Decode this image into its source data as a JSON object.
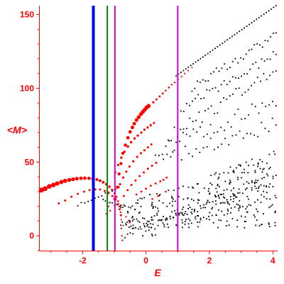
{
  "chart_data": {
    "type": "scatter",
    "title": "",
    "xlabel": "E",
    "ylabel": "<M>",
    "xlim": [
      -3.35,
      4.15
    ],
    "ylim": [
      -10,
      156
    ],
    "x_ticks": [
      -2,
      0,
      2,
      4
    ],
    "x_tick_labels": [
      "-2",
      "0",
      "2",
      "4"
    ],
    "y_ticks": [
      0,
      50,
      100,
      150
    ],
    "y_tick_labels": [
      "0",
      "50",
      "100",
      "150"
    ],
    "grid": false,
    "legend": "none",
    "axis_color": "#ff0000",
    "vertical_lines": [
      {
        "x": -1.66,
        "color": "#0000ff"
      },
      {
        "x": -1.22,
        "color": "#008000"
      },
      {
        "x": -0.98,
        "color": "#dd00dd"
      },
      {
        "x": 1.0,
        "color": "#dd00dd"
      }
    ],
    "series": [
      {
        "color": "#ff0000",
        "points": [
          [
            -3.3,
            31,
            3.5
          ],
          [
            -3.18,
            32,
            3.4
          ],
          [
            -3.05,
            33.5,
            3.3
          ],
          [
            -2.92,
            34.5,
            3.2
          ],
          [
            -2.8,
            35.5,
            3.1
          ],
          [
            -2.67,
            36.5,
            3.0
          ],
          [
            -2.55,
            37.3,
            2.9
          ],
          [
            -2.42,
            37.9,
            2.8
          ],
          [
            -2.3,
            38.4,
            2.7
          ],
          [
            -2.18,
            38.8,
            2.6
          ],
          [
            -2.05,
            39.0,
            2.5
          ],
          [
            -1.93,
            39.1,
            2.4
          ],
          [
            -1.8,
            39.0,
            2.3
          ],
          [
            -1.68,
            38.7,
            2.2
          ],
          [
            -1.55,
            38.2,
            2.1
          ],
          [
            -1.45,
            37.4,
            2.0
          ],
          [
            -1.35,
            36.3,
            1.9
          ],
          [
            -1.25,
            35.0,
            1.8
          ],
          [
            -1.15,
            33.3,
            1.7
          ],
          [
            -1.07,
            31.3,
            1.6
          ],
          [
            -0.99,
            29.0,
            1.5
          ],
          [
            -0.93,
            26.5,
            1.4
          ],
          [
            -0.88,
            23.5,
            1.3
          ],
          [
            -0.83,
            20.0,
            1.2
          ],
          [
            -0.8,
            16.0,
            1.2
          ],
          [
            -0.78,
            11.0,
            1.1
          ],
          [
            -0.76,
            0.0,
            1.1
          ],
          [
            -0.74,
            -3.0,
            1.0
          ],
          [
            -2.75,
            22.0,
            1.5
          ],
          [
            -2.55,
            24.0,
            1.5
          ],
          [
            -2.35,
            26.5,
            1.5
          ],
          [
            -2.15,
            28.5,
            1.5
          ],
          [
            -1.95,
            30.0,
            1.5
          ],
          [
            -1.78,
            31.0,
            1.5
          ],
          [
            -1.6,
            31.5,
            1.5
          ],
          [
            -1.45,
            31.5,
            1.5
          ],
          [
            -1.3,
            30.5,
            1.5
          ],
          [
            -1.18,
            29.0,
            1.5
          ],
          [
            -1.06,
            27.0,
            1.5
          ],
          [
            -0.96,
            24.5,
            1.5
          ],
          [
            -0.88,
            21.5,
            1.5
          ],
          [
            -0.83,
            18.0,
            1.5
          ],
          [
            -0.79,
            14.0,
            1.5
          ],
          [
            -1.25,
            15.0,
            1.2
          ],
          [
            -1.18,
            20.0,
            1.2
          ],
          [
            -1.13,
            17.0,
            1.2
          ],
          [
            -0.72,
            7.0,
            1.1
          ],
          [
            -0.63,
            13.0,
            1.1
          ],
          [
            -0.52,
            9.0,
            1.1
          ],
          [
            -0.98,
            25.0,
            2.3
          ],
          [
            -0.9,
            33.0,
            2.3
          ],
          [
            -0.85,
            42.0,
            2.2
          ],
          [
            -0.79,
            49.0,
            2.2
          ],
          [
            -0.73,
            56.0,
            2.2
          ],
          [
            -0.65,
            61.5,
            2.3
          ],
          [
            -0.57,
            66.5,
            2.4
          ],
          [
            -0.5,
            70.5,
            2.4
          ],
          [
            -0.43,
            73.5,
            2.5
          ],
          [
            -0.37,
            76.0,
            2.5
          ],
          [
            -0.3,
            78.5,
            2.6
          ],
          [
            -0.23,
            80.5,
            2.7
          ],
          [
            -0.16,
            82.5,
            2.7
          ],
          [
            -0.1,
            84.0,
            2.8
          ],
          [
            -0.04,
            85.5,
            2.8
          ],
          [
            0.02,
            87.0,
            2.9
          ],
          [
            0.08,
            88.0,
            2.9
          ],
          [
            0.23,
            90.5,
            1.6
          ],
          [
            0.33,
            92.5,
            1.5
          ],
          [
            0.43,
            94.5,
            1.4
          ],
          [
            0.53,
            96.5,
            1.4
          ],
          [
            0.62,
            98.5,
            1.3
          ],
          [
            0.72,
            100.5,
            1.3
          ],
          [
            0.81,
            102.5,
            1.2
          ],
          [
            0.91,
            104.0,
            1.2
          ],
          [
            1.01,
            106.0,
            1.2
          ],
          [
            1.12,
            108.0,
            1.1
          ],
          [
            1.22,
            110.0,
            1.1
          ],
          [
            1.33,
            112.0,
            1.1
          ],
          [
            1.45,
            114.0,
            1.0
          ],
          [
            -0.97,
            43.0,
            1.6
          ],
          [
            -0.88,
            48.0,
            1.6
          ],
          [
            -0.78,
            53.0,
            1.7
          ],
          [
            -0.68,
            57.0,
            1.7
          ],
          [
            -0.57,
            60.5,
            1.7
          ],
          [
            -0.47,
            63.5,
            1.7
          ],
          [
            -0.36,
            66.0,
            1.7
          ],
          [
            -0.26,
            68.0,
            1.7
          ],
          [
            -0.15,
            70.0,
            1.6
          ],
          [
            -0.05,
            72.0,
            1.6
          ],
          [
            0.05,
            73.5,
            1.6
          ],
          [
            0.15,
            75.0,
            1.6
          ],
          [
            0.25,
            76.5,
            1.5
          ],
          [
            -0.82,
            35.0,
            1.6
          ],
          [
            -0.72,
            39.5,
            1.6
          ],
          [
            -0.62,
            43.5,
            1.6
          ],
          [
            -0.52,
            47.0,
            1.6
          ],
          [
            -0.4,
            50.5,
            1.6
          ],
          [
            -0.28,
            53.5,
            1.6
          ],
          [
            -0.16,
            56.0,
            1.6
          ],
          [
            -0.05,
            58.0,
            1.6
          ],
          [
            0.06,
            60.0,
            1.5
          ],
          [
            0.17,
            62.0,
            1.5
          ],
          [
            -0.7,
            27.0,
            1.5
          ],
          [
            -0.58,
            31.0,
            1.5
          ],
          [
            -0.46,
            34.5,
            1.5
          ],
          [
            -0.33,
            37.5,
            1.5
          ],
          [
            -0.2,
            40.5,
            1.5
          ],
          [
            -0.07,
            43.0,
            1.5
          ],
          [
            0.06,
            45.5,
            1.5
          ],
          [
            0.19,
            47.5,
            1.5
          ],
          [
            0.32,
            49.5,
            1.5
          ],
          [
            -0.3,
            28.0,
            1.4
          ],
          [
            -0.15,
            30.0,
            1.4
          ],
          [
            0.0,
            32.0,
            1.4
          ],
          [
            0.15,
            34.0,
            1.4
          ],
          [
            0.3,
            35.5,
            1.4
          ],
          [
            0.45,
            37.0,
            1.4
          ],
          [
            0.55,
            38.0,
            1.4
          ],
          [
            0.65,
            39.5,
            1.4
          ],
          [
            0.2,
            25.0,
            1.3
          ],
          [
            0.38,
            27.0,
            1.3
          ],
          [
            0.62,
            30.0,
            1.3
          ]
        ]
      },
      {
        "color": "#000000",
        "segments": [
          {
            "from": [
              0.95,
              108.5
            ],
            "to": [
              4.1,
              156
            ],
            "n": 42,
            "dx": 0.0,
            "dy": 0.0
          },
          {
            "from": [
              1.45,
              101.0
            ],
            "to": [
              4.1,
              136
            ],
            "n": 32,
            "dx": 0.0,
            "dy": 3.0
          },
          {
            "from": [
              1.1,
              86.0
            ],
            "to": [
              4.1,
              123
            ],
            "n": 34,
            "dx": 0.0,
            "dy": 3.0
          },
          {
            "from": [
              0.7,
              67.0
            ],
            "to": [
              4.1,
              112
            ],
            "n": 36,
            "dx": 0.0,
            "dy": 4.5
          },
          {
            "from": [
              0.3,
              57.0
            ],
            "to": [
              4.1,
              92
            ],
            "n": 36,
            "dx": 0.0,
            "dy": 5.5
          },
          {
            "from": [
              0.55,
              51.0
            ],
            "to": [
              4.1,
              76
            ],
            "n": 32,
            "dx": 0.0,
            "dy": 5.0
          },
          {
            "from": [
              -2.15,
              21.0
            ],
            "to": [
              -0.85,
              32.5
            ],
            "n": 13,
            "dx": 0.0,
            "dy": 0.8
          },
          {
            "from": [
              -1.35,
              24.0
            ],
            "to": [
              -0.85,
              20.0
            ],
            "n": 8,
            "dx": 0.0,
            "dy": 0.8
          },
          {
            "from": [
              -0.75,
              -3.0
            ],
            "to": [
              0.35,
              12.0
            ],
            "n": 14,
            "dx": 0.0,
            "dy": 3.0
          },
          {
            "from": [
              -0.1,
              2.0
            ],
            "to": [
              4.1,
              40
            ],
            "n": 45,
            "dx": 0.0,
            "dy": 4.5
          },
          {
            "from": [
              0.2,
              6.0
            ],
            "to": [
              4.1,
              30
            ],
            "n": 42,
            "dx": 0.0,
            "dy": 6.0
          }
        ],
        "cloud": {
          "xrange": [
            -0.8,
            4.1
          ],
          "yrange": [
            0,
            58
          ],
          "n": 320,
          "seed": 7
        }
      }
    ]
  }
}
